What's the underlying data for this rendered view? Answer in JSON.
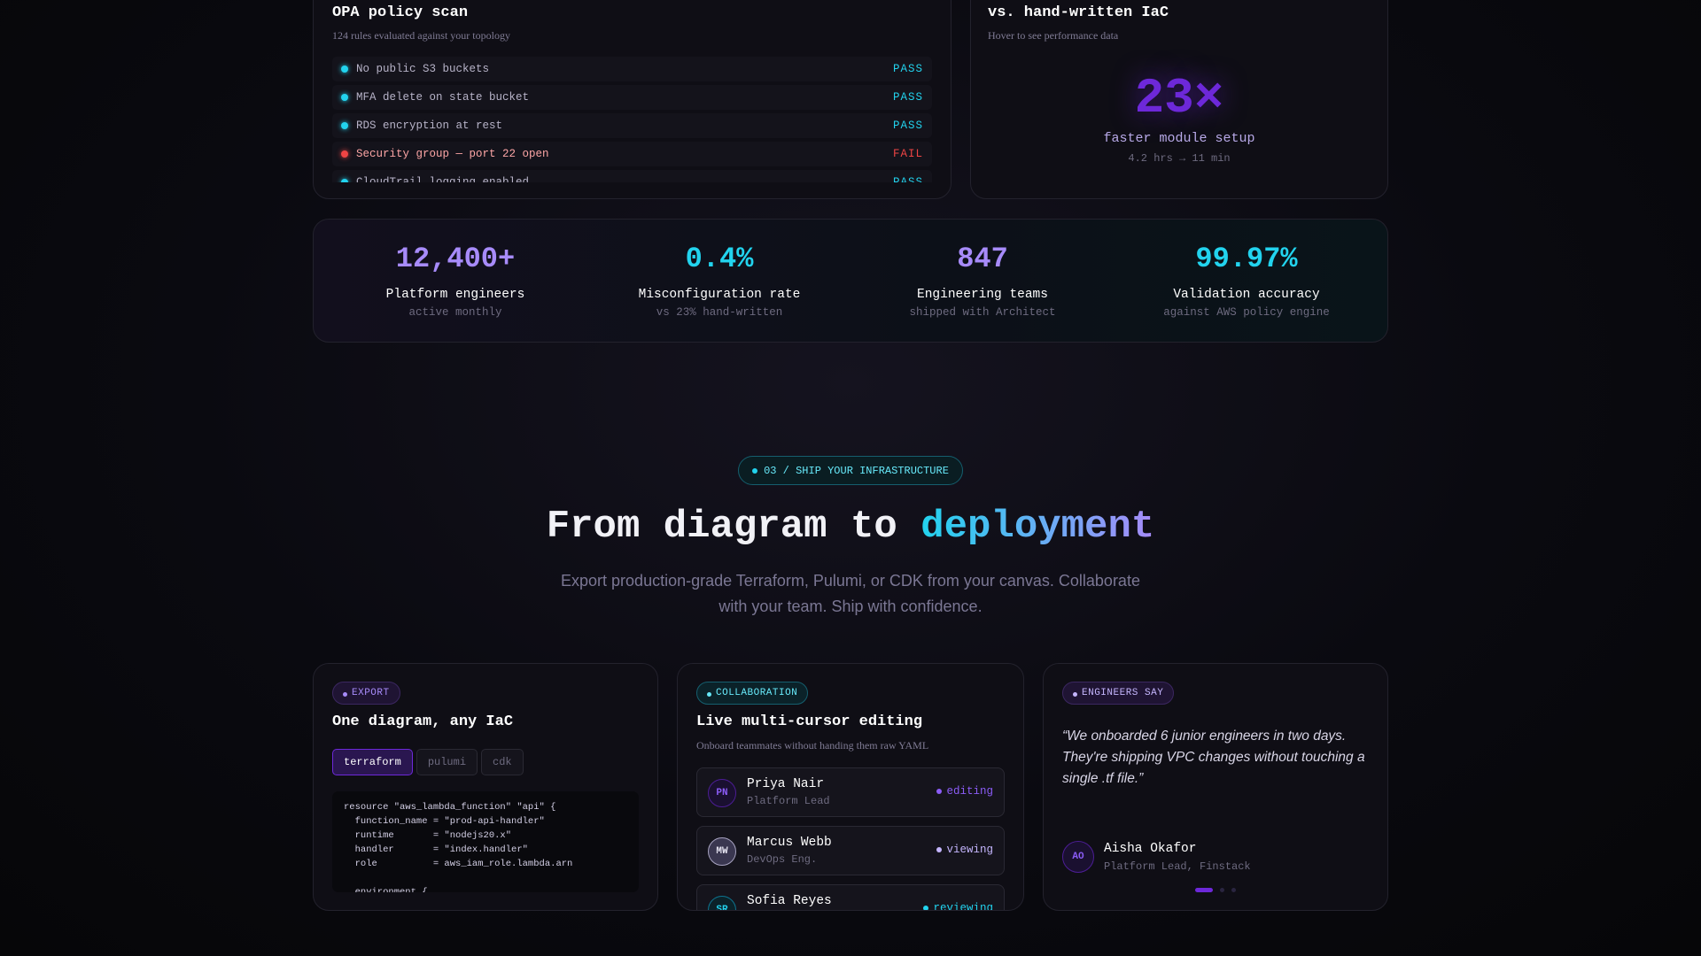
{
  "policy_scan": {
    "title": "OPA policy scan",
    "subtitle": "124 rules evaluated against your topology",
    "rules": [
      {
        "name": "No public S3 buckets",
        "status": "PASS"
      },
      {
        "name": "MFA delete on state bucket",
        "status": "PASS"
      },
      {
        "name": "RDS encryption at rest",
        "status": "PASS"
      },
      {
        "name": "Security group — port 22 open",
        "status": "FAIL"
      },
      {
        "name": "CloudTrail logging enabled",
        "status": "PASS"
      }
    ]
  },
  "comparison": {
    "title": "vs. hand-written IaC",
    "subtitle": "Hover to see performance data",
    "metric": "23×",
    "label": "faster module setup",
    "detail": "4.2 hrs → 11 min"
  },
  "stats": [
    {
      "value": "12,400+",
      "label": "Platform engineers",
      "sub": "active monthly",
      "color": "#a78bfa"
    },
    {
      "value": "0.4%",
      "label": "Misconfiguration rate",
      "sub": "vs 23% hand-written",
      "color": "#22d3ee"
    },
    {
      "value": "847",
      "label": "Engineering teams",
      "sub": "shipped with Architect",
      "color": "#a78bfa"
    },
    {
      "value": "99.97%",
      "label": "Validation accuracy",
      "sub": "against AWS policy engine",
      "color": "#22d3ee"
    }
  ],
  "section": {
    "badge": "03 / SHIP YOUR INFRASTRUCTURE",
    "heading_prefix": "From diagram to",
    "heading_highlight": "deployment",
    "description": "Export production-grade Terraform, Pulumi, or CDK from your canvas. Collaborate with your team. Ship with confidence."
  },
  "export_card": {
    "tag": "EXPORT",
    "title": "One diagram, any IaC",
    "tabs": [
      "terraform",
      "pulumi",
      "cdk"
    ],
    "code": [
      "resource \"aws_lambda_function\" \"api\" {",
      "  function_name = \"prod-api-handler\"",
      "  runtime       = \"nodejs20.x\"",
      "  handler       = \"index.handler\"",
      "  role          = aws_iam_role.lambda.arn",
      "",
      "  environment {"
    ]
  },
  "collab_card": {
    "tag": "COLLABORATION",
    "title": "Live multi-cursor editing",
    "subtitle": "Onboard teammates without handing them raw YAML",
    "users": [
      {
        "initials": "PN",
        "name": "Priya Nair",
        "role": "Platform Lead",
        "status": "editing"
      },
      {
        "initials": "MW",
        "name": "Marcus Webb",
        "role": "DevOps Eng.",
        "status": "viewing"
      },
      {
        "initials": "SR",
        "name": "Sofia Reyes",
        "status": "reviewing"
      }
    ]
  },
  "testimonial": {
    "tag": "ENGINEERS SAY",
    "quote": "“We onboarded 6 junior engineers in two days. They're shipping VPC changes without touching a single .tf file.”",
    "initials": "AO",
    "name": "Aisha Okafor",
    "role": "Platform Lead, Finstack"
  }
}
